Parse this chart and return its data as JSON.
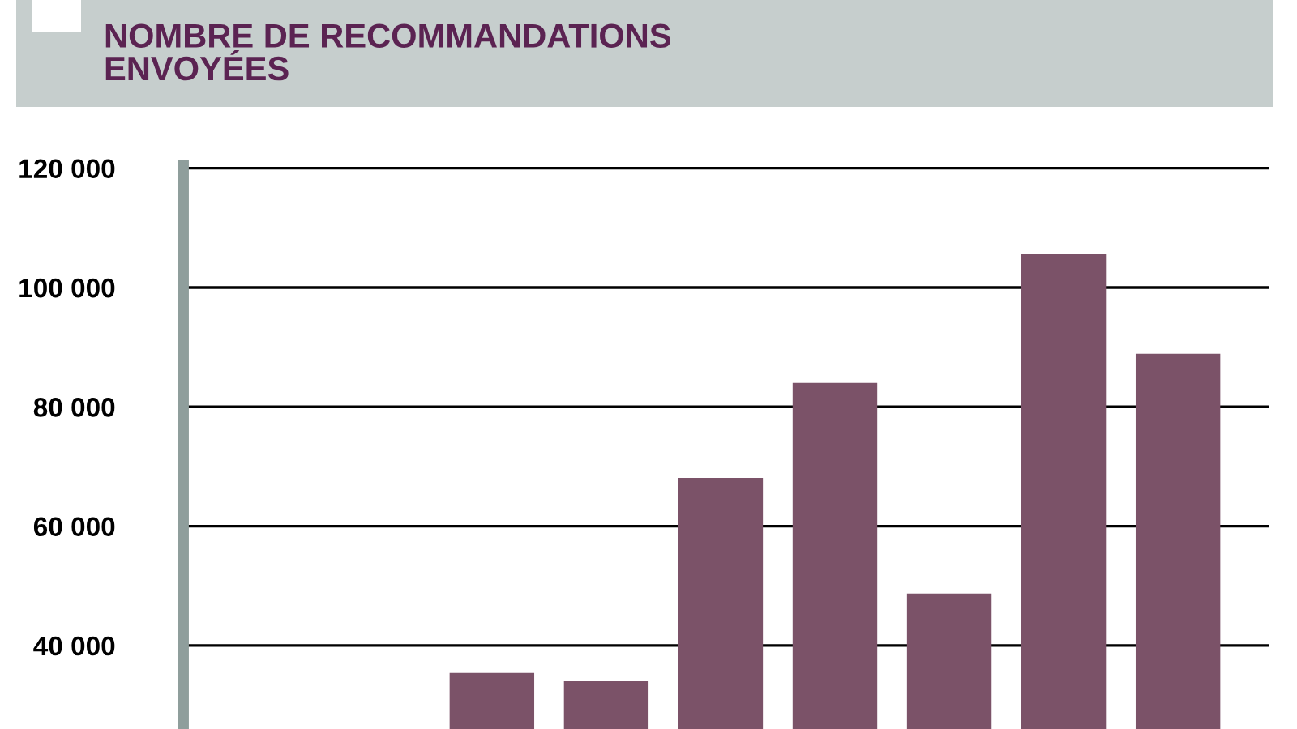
{
  "chart_data": {
    "type": "bar",
    "title": "NOMBRE DE RECOMMANDATIONS\nENVOYÉES",
    "categories": [
      null,
      null,
      null,
      null,
      null,
      null,
      null,
      null,
      null
    ],
    "values": [
      null,
      null,
      35400,
      34000,
      68100,
      84000,
      48700,
      105700,
      88900
    ],
    "color": "#7b5268",
    "ylim": [
      26000,
      120500
    ],
    "yticks": [
      {
        "value": 40000,
        "label": "40 000"
      },
      {
        "value": 60000,
        "label": "60 000"
      },
      {
        "value": 80000,
        "label": "80 000"
      },
      {
        "value": 100000,
        "label": "100 000"
      },
      {
        "value": 120000,
        "label": "120 000"
      }
    ],
    "grid": "y",
    "tick_labels": "y"
  }
}
